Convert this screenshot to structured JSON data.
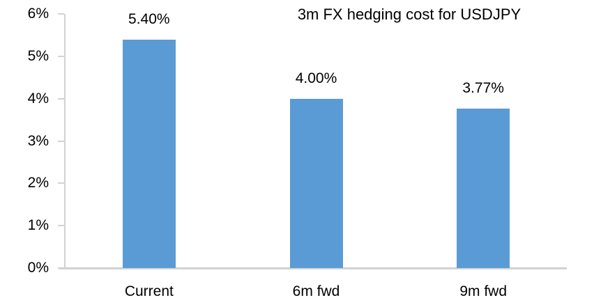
{
  "chart_data": {
    "type": "bar",
    "title": "3m FX hedging cost for USDJPY",
    "categories": [
      "Current",
      "6m fwd",
      "9m fwd"
    ],
    "values": [
      5.4,
      4.0,
      3.77
    ],
    "value_labels": [
      "5.40%",
      "4.00%",
      "3.77%"
    ],
    "xlabel": "",
    "ylabel": "",
    "ylim": [
      0,
      6
    ],
    "ytick_labels": [
      "0%",
      "1%",
      "2%",
      "3%",
      "4%",
      "5%",
      "6%"
    ],
    "bar_color": "#5b9bd5",
    "axis_color": "#d2d2d2",
    "text_color": "#000000",
    "grid": "off",
    "legend_position": "none"
  }
}
